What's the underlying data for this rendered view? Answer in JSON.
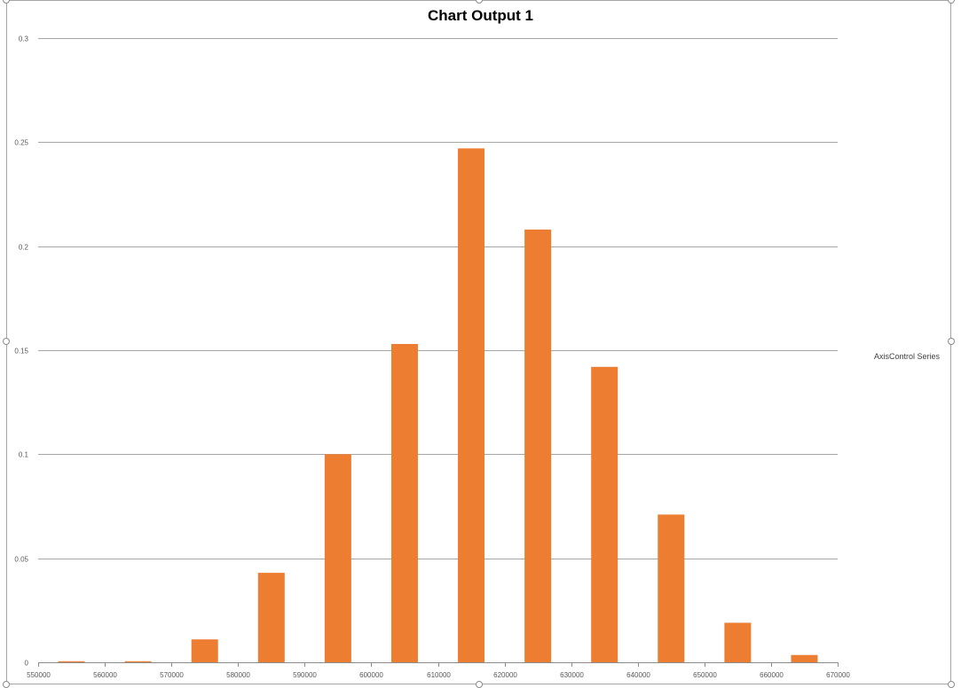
{
  "chart_data": {
    "type": "bar",
    "title": "Chart Output 1",
    "xlabel": "",
    "ylabel": "",
    "ylim": [
      0,
      0.3
    ],
    "y_ticks": [
      "0",
      "0.05",
      "0.1",
      "0.15",
      "0.2",
      "0.25",
      "0.3"
    ],
    "xlim": [
      550000,
      670000
    ],
    "x_ticks": [
      "550000",
      "560000",
      "570000",
      "580000",
      "590000",
      "600000",
      "610000",
      "620000",
      "630000",
      "640000",
      "650000",
      "660000",
      "670000"
    ],
    "bin_width": 10000,
    "series": [
      {
        "bin_centers": [
          555000,
          565000,
          575000,
          585000,
          595000,
          605000,
          615000,
          625000,
          635000,
          645000,
          655000,
          665000
        ],
        "values": [
          0.0005,
          0.0005,
          0.011,
          0.043,
          0.1,
          0.153,
          0.247,
          0.208,
          0.142,
          0.071,
          0.019,
          0.0035
        ],
        "color": "#ED7D31"
      }
    ],
    "grid": true,
    "legend": {
      "label": "AxisControl Series",
      "position": "right"
    }
  }
}
